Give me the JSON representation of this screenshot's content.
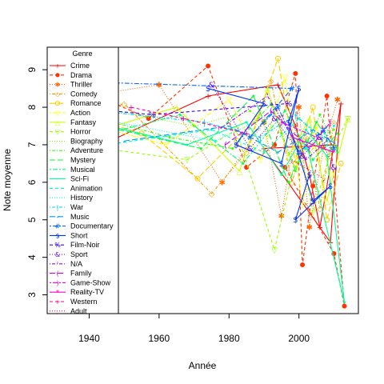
{
  "chart_data": {
    "type": "line",
    "xlabel": "Année",
    "ylabel": "Note moyenne",
    "xlim": [
      1928,
      2017
    ],
    "ylim": [
      2.5,
      9.6
    ],
    "x_ticks": [
      1940,
      1960,
      1980,
      2000
    ],
    "y_ticks": [
      3,
      4,
      5,
      6,
      7,
      8,
      9
    ],
    "grid": false,
    "legend": {
      "title": "Genre",
      "position": "left",
      "entries": [
        {
          "name": "Crime",
          "color": "#FF0000",
          "marker": "+",
          "dash": "solid"
        },
        {
          "name": "Drama",
          "color": "#FF3300",
          "marker": "●",
          "dash": "dashed"
        },
        {
          "name": "Thriller",
          "color": "#FF6600",
          "marker": "✱",
          "dash": "dotted"
        },
        {
          "name": "Comedy",
          "color": "#FF9900",
          "marker": "◇",
          "dash": "dotdash"
        },
        {
          "name": "Romance",
          "color": "#FFCC00",
          "marker": "○",
          "dash": "longdash"
        },
        {
          "name": "Action",
          "color": "#FFFF00",
          "marker": "▽",
          "dash": "twodash"
        },
        {
          "name": "Fantasy",
          "color": "#CCFF00",
          "marker": "△",
          "dash": "solid"
        },
        {
          "name": "Horror",
          "color": "#99FF00",
          "marker": "▽",
          "dash": "dashed"
        },
        {
          "name": "Biography",
          "color": "#66FF00",
          "marker": "",
          "dash": "dotted"
        },
        {
          "name": "Adventure",
          "color": "#33FF00",
          "marker": "",
          "dash": "dotdash"
        },
        {
          "name": "Mystery",
          "color": "#00FF33",
          "marker": "",
          "dash": "longdash"
        },
        {
          "name": "Musical",
          "color": "#00FF66",
          "marker": "",
          "dash": "twodash"
        },
        {
          "name": "Sci-Fi",
          "color": "#00FF99",
          "marker": "",
          "dash": "solid"
        },
        {
          "name": "Animation",
          "color": "#00FFCC",
          "marker": "",
          "dash": "dashed"
        },
        {
          "name": "History",
          "color": "#00FFFF",
          "marker": "",
          "dash": "dotted"
        },
        {
          "name": "War",
          "color": "#00CCFF",
          "marker": "|",
          "dash": "dotdash"
        },
        {
          "name": "Music",
          "color": "#0099FF",
          "marker": "-",
          "dash": "longdash"
        },
        {
          "name": "Documentary",
          "color": "#0066FF",
          "marker": "#",
          "dash": "twodash"
        },
        {
          "name": "Short",
          "color": "#0033FF",
          "marker": "$",
          "dash": "solid"
        },
        {
          "name": "Film-Noir",
          "color": "#3300FF",
          "marker": "%",
          "dash": "dashed"
        },
        {
          "name": "Sport",
          "color": "#6600FF",
          "marker": "&",
          "dash": "dotted"
        },
        {
          "name": "N/A",
          "color": "#9900FF",
          "marker": "'",
          "dash": "dotdash"
        },
        {
          "name": "Family",
          "color": "#CC00FF",
          "marker": "(",
          "dash": "longdash"
        },
        {
          "name": "Game-Show",
          "color": "#FF00FF",
          "marker": ")",
          "dash": "twodash"
        },
        {
          "name": "Reality-TV",
          "color": "#FF00CC",
          "marker": "*",
          "dash": "solid"
        },
        {
          "name": "Western",
          "color": "#FF0099",
          "marker": "+",
          "dash": "dashed"
        },
        {
          "name": "Adult",
          "color": "#FF0066",
          "marker": ",",
          "dash": "dotted"
        }
      ]
    },
    "series": [
      {
        "name": "Crime",
        "x": [
          1931,
          1946,
          1974,
          1994,
          1999,
          2003,
          2006,
          2012,
          2009,
          1990,
          2010
        ],
        "y": [
          8.8,
          7.1,
          8.3,
          8.6,
          7.5,
          6.2,
          4.8,
          8.1,
          4.4,
          6.9,
          7.0
        ]
      },
      {
        "name": "Drama",
        "x": [
          1935,
          1957,
          1974,
          1985,
          1993,
          1999,
          2001,
          2004,
          2008,
          2013,
          2010,
          1996
        ],
        "y": [
          8.6,
          7.7,
          9.1,
          6.4,
          7.0,
          8.9,
          3.8,
          5.9,
          8.3,
          2.7,
          4.1,
          6.4
        ]
      },
      {
        "name": "Thriller",
        "x": [
          1932,
          1960,
          1978,
          1990,
          1995,
          2000,
          2003,
          2007,
          2011
        ],
        "y": [
          8.2,
          8.6,
          6.0,
          7.6,
          5.1,
          8.0,
          4.8,
          6.9,
          8.2
        ]
      },
      {
        "name": "Comedy",
        "x": [
          1933,
          1950,
          1975,
          1985,
          1992,
          1998,
          2002,
          2006,
          2010
        ],
        "y": [
          7.4,
          8.1,
          5.7,
          6.8,
          8.7,
          6.0,
          7.2,
          5.3,
          7.6
        ]
      },
      {
        "name": "Romance",
        "x": [
          1934,
          1955,
          1971,
          1988,
          1994,
          1999,
          2004,
          2008,
          2012
        ],
        "y": [
          7.9,
          7.3,
          6.1,
          7.7,
          9.3,
          6.5,
          8.0,
          5.0,
          6.5
        ]
      },
      {
        "name": "Action",
        "x": [
          1938,
          1962,
          1980,
          1989,
          1996,
          2001,
          2005,
          2009
        ],
        "y": [
          7.6,
          7.0,
          8.2,
          6.6,
          8.8,
          5.4,
          7.5,
          6.2
        ]
      },
      {
        "name": "Fantasy",
        "x": [
          1940,
          1965,
          1983,
          1991,
          1997,
          2003,
          2008,
          2014
        ],
        "y": [
          7.3,
          8.0,
          6.3,
          8.5,
          6.7,
          7.7,
          5.5,
          7.7
        ]
      },
      {
        "name": "Horror",
        "x": [
          1936,
          1968,
          1982,
          1993,
          2000,
          2004,
          2009,
          2014
        ],
        "y": [
          7.0,
          6.6,
          7.4,
          4.2,
          7.0,
          5.2,
          6.8,
          7.7
        ]
      },
      {
        "name": "Biography",
        "x": [
          1942,
          1970,
          1986,
          1995,
          2003,
          2010
        ],
        "y": [
          8.0,
          7.5,
          7.9,
          7.3,
          6.8,
          7.4
        ]
      },
      {
        "name": "Adventure",
        "x": [
          1939,
          1963,
          1981,
          1992,
          1999,
          2006,
          2011
        ],
        "y": [
          7.8,
          7.2,
          6.9,
          8.1,
          6.3,
          7.8,
          6.9
        ]
      },
      {
        "name": "Mystery",
        "x": [
          1944,
          1972,
          1987,
          1997,
          2005,
          2011
        ],
        "y": [
          7.5,
          6.9,
          8.3,
          6.0,
          7.6,
          6.8
        ]
      },
      {
        "name": "Musical",
        "x": [
          1941,
          1966,
          1984,
          1996,
          2004,
          2011
        ],
        "y": [
          7.2,
          7.8,
          6.5,
          7.9,
          6.6,
          7.3
        ]
      },
      {
        "name": "Sci-Fi",
        "x": [
          1937,
          1968,
          1985,
          1995,
          2002,
          2008,
          2013,
          2002
        ],
        "y": [
          7.7,
          7.0,
          7.6,
          6.2,
          7.4,
          6.7,
          2.8,
          7.1
        ]
      },
      {
        "name": "Animation",
        "x": [
          1945,
          1975,
          1990,
          2000,
          2008
        ],
        "y": [
          7.0,
          7.4,
          6.8,
          7.7,
          7.1
        ]
      },
      {
        "name": "History",
        "x": [
          1948,
          1976,
          1992,
          2002,
          2010
        ],
        "y": [
          7.6,
          7.1,
          7.8,
          6.9,
          7.5
        ]
      },
      {
        "name": "War",
        "x": [
          1943,
          1973,
          1989,
          1999,
          2009
        ],
        "y": [
          7.9,
          7.6,
          7.2,
          7.8,
          6.9
        ]
      },
      {
        "name": "Music",
        "x": [
          1950,
          1980,
          1994,
          2004,
          2011
        ],
        "y": [
          7.1,
          7.5,
          6.8,
          7.4,
          7.0
        ]
      },
      {
        "name": "Documentary",
        "x": [
          1930,
          1998,
          1986,
          1994,
          2000,
          2007,
          2010
        ],
        "y": [
          8.7,
          8.5,
          7.2,
          8.0,
          6.8,
          7.4,
          6.9
        ]
      },
      {
        "name": "Short",
        "x": [
          1974,
          1990,
          1982,
          1995,
          2000,
          1997,
          2004,
          2009,
          1999,
          2003
        ],
        "y": [
          8.5,
          8.1,
          7.0,
          6.5,
          8.5,
          7.6,
          5.5,
          5.9,
          5.0,
          6.2
        ]
      },
      {
        "name": "Film-Noir",
        "x": [
          1947,
          1958,
          1997
        ],
        "y": [
          7.9,
          7.8,
          8.1
        ]
      },
      {
        "name": "Sport",
        "x": [
          1975,
          1986,
          1993,
          2001,
          2006,
          2010
        ],
        "y": [
          8.6,
          6.9,
          7.7,
          6.7,
          7.2,
          6.4
        ]
      },
      {
        "name": "N/A",
        "x": [
          1977,
          1991,
          2002,
          2008
        ],
        "y": [
          7.4,
          8.3,
          6.6,
          7.1
        ]
      },
      {
        "name": "Family",
        "x": [
          1979,
          1992,
          2003,
          2009
        ],
        "y": [
          7.0,
          7.9,
          6.9,
          7.6
        ]
      },
      {
        "name": "Game-Show",
        "x": [
          1995,
          2005
        ],
        "y": [
          7.6,
          7.2
        ]
      },
      {
        "name": "Reality-TV",
        "x": [
          1998,
          2010
        ],
        "y": [
          7.2,
          6.8
        ]
      },
      {
        "name": "Western",
        "x": [
          1952,
          1967,
          1985
        ],
        "y": [
          8.0,
          7.7,
          7.3
        ]
      },
      {
        "name": "Adult",
        "x": [
          1998,
          2007
        ],
        "y": [
          6.6,
          6.1
        ]
      }
    ]
  }
}
